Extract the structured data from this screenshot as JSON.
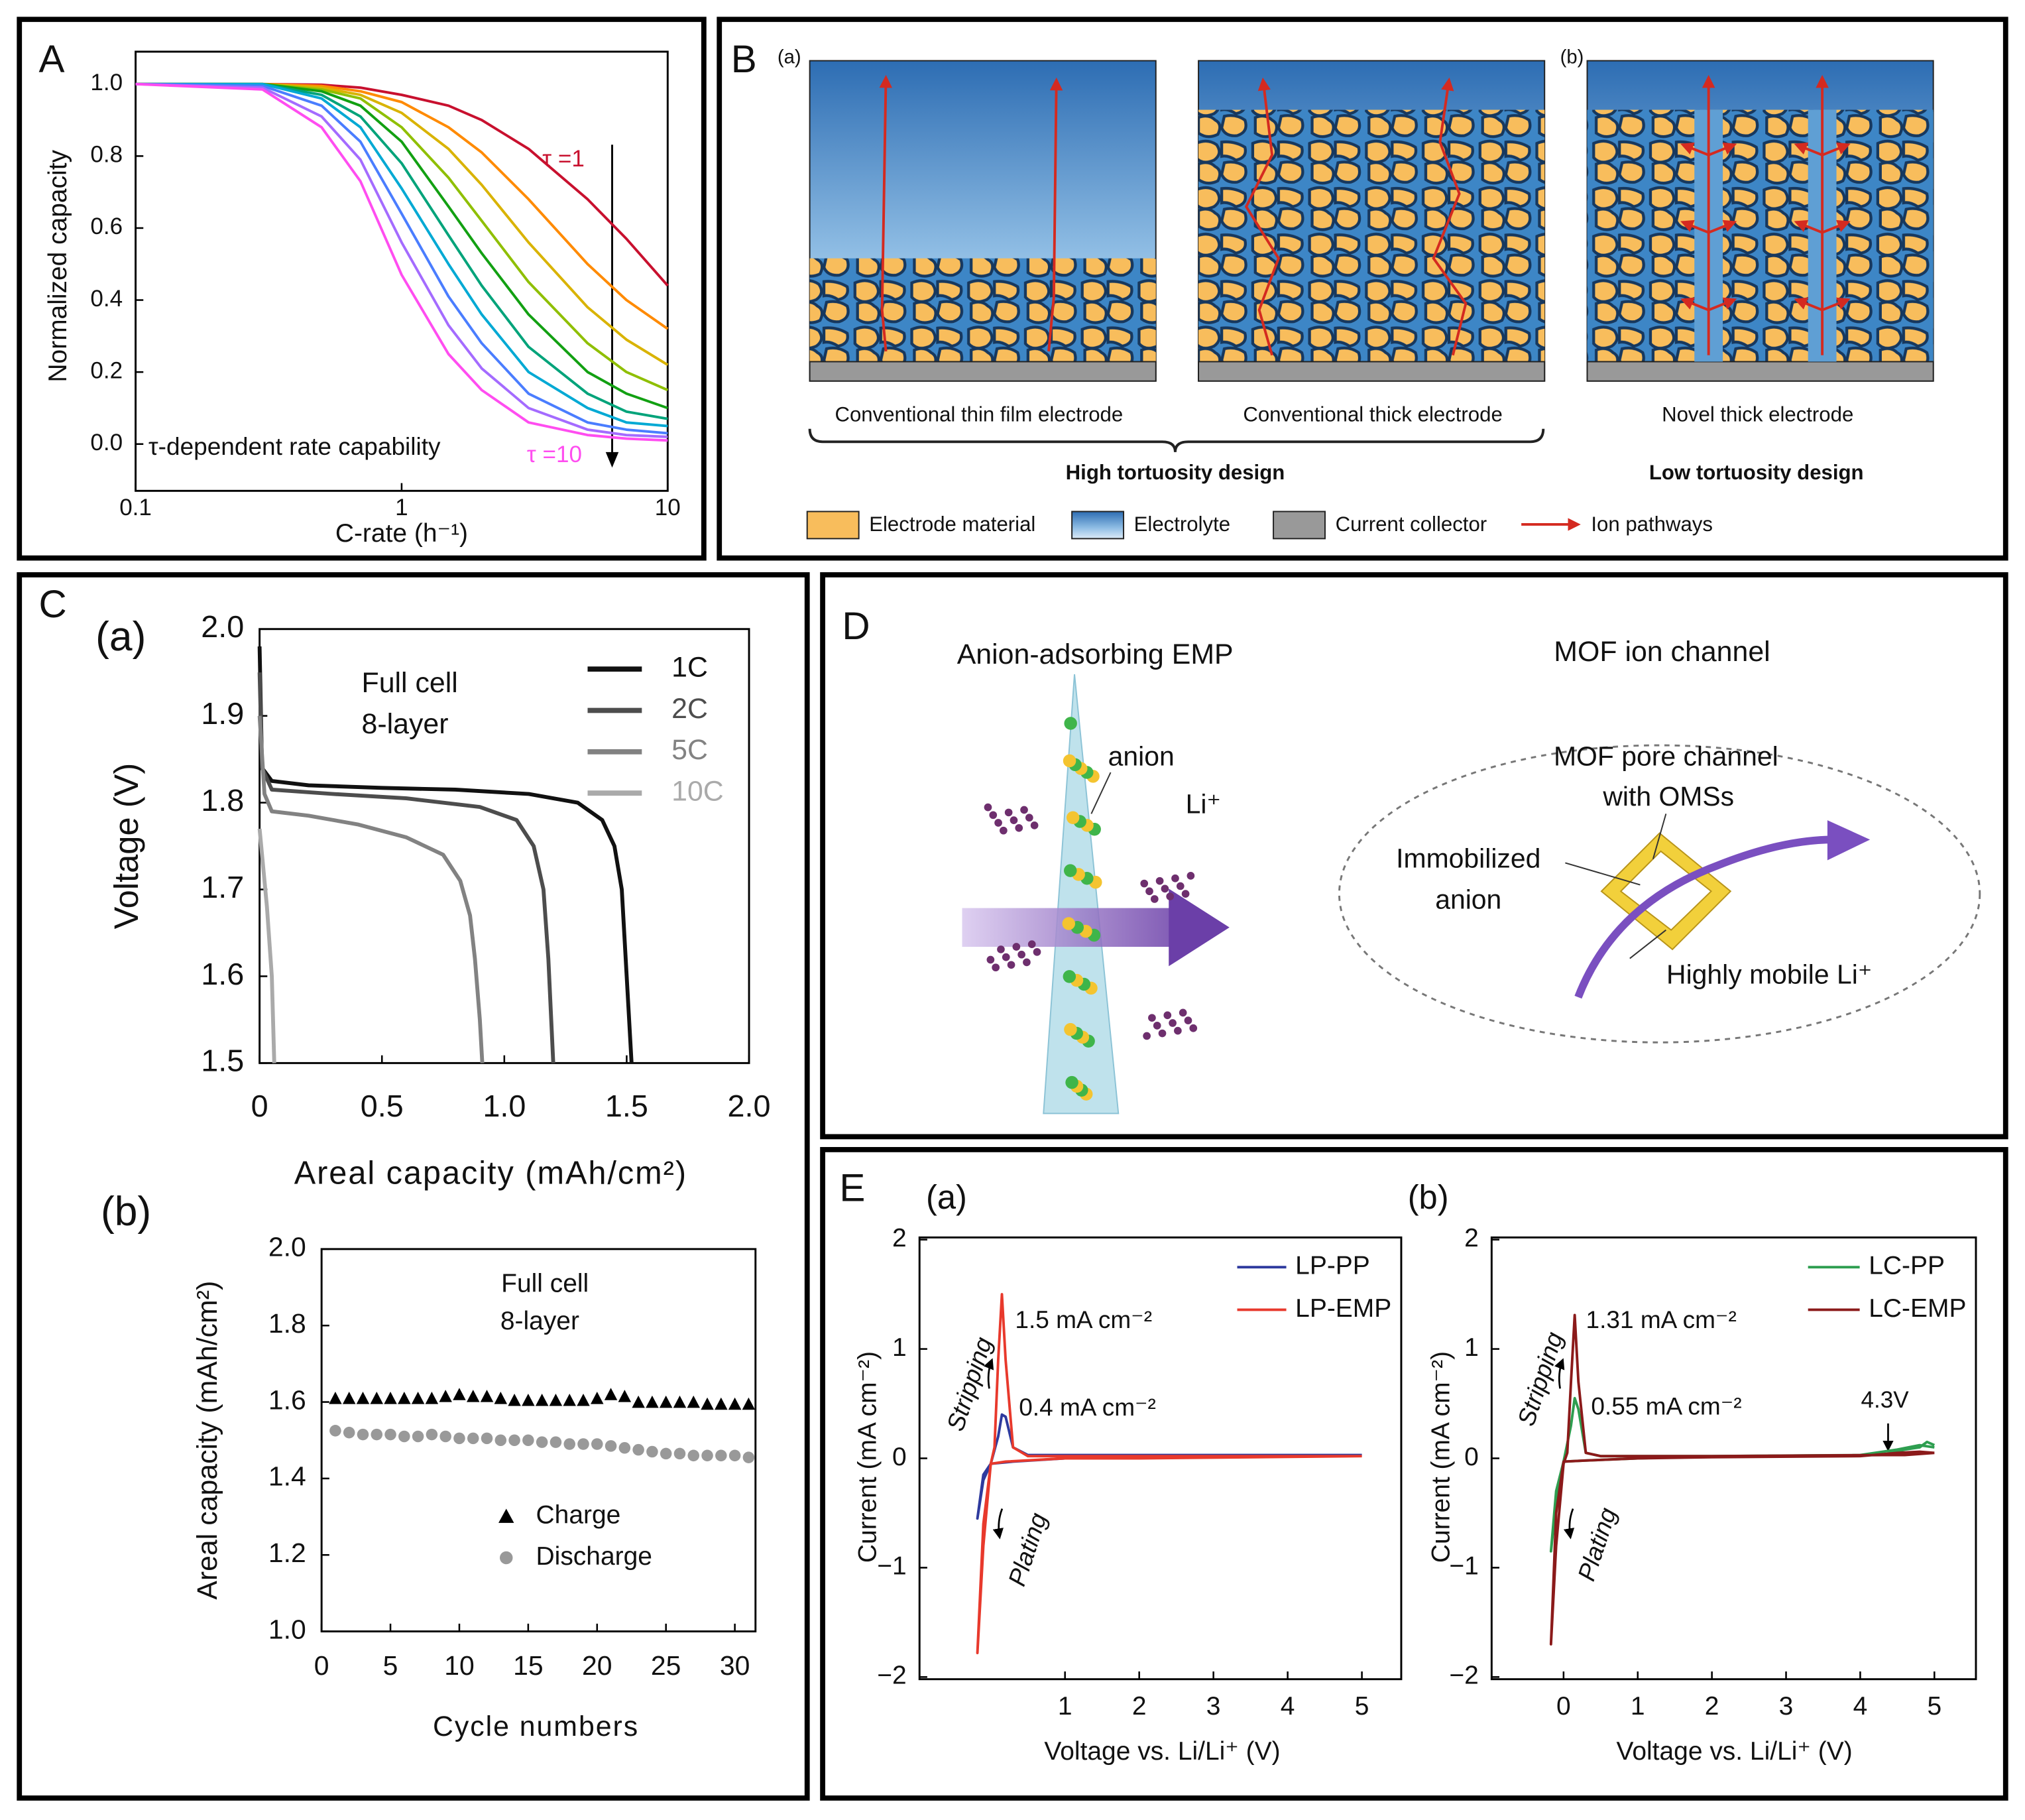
{
  "panels": [
    "A",
    "B",
    "C",
    "D",
    "E"
  ],
  "chart_data": [
    {
      "type": "line",
      "xlabel": "C-rate (h⁻¹)",
      "ylabel": "Normalized capacity",
      "log_x": true,
      "x": [
        0.1,
        0.3,
        0.5,
        0.7,
        1,
        1.5,
        2,
        3,
        5,
        7,
        10
      ],
      "xlim": [
        0.1,
        10
      ],
      "xticks": [
        0.1,
        1,
        10
      ],
      "ylim": [
        -0.13,
        1.09
      ],
      "yticks": [
        {
          "value": 0,
          "label": "0.0"
        },
        0.2,
        0.4,
        0.6,
        0.8,
        {
          "value": 1,
          "label": "1.0"
        }
      ],
      "annotations": [
        "τ =1",
        "τ =10",
        "τ-dependent rate capability"
      ],
      "series": [
        {
          "color": "#c8102e",
          "values": [
            1,
            1,
            0.998,
            0.99,
            0.97,
            0.94,
            0.9,
            0.82,
            0.68,
            0.57,
            0.44
          ]
        },
        {
          "color": "#ff8a00",
          "values": [
            1,
            1,
            0.995,
            0.98,
            0.95,
            0.88,
            0.81,
            0.68,
            0.5,
            0.4,
            0.32
          ]
        },
        {
          "color": "#d9b300",
          "values": [
            1,
            1,
            0.99,
            0.97,
            0.92,
            0.82,
            0.72,
            0.56,
            0.38,
            0.29,
            0.22
          ]
        },
        {
          "color": "#8fbf00",
          "values": [
            1,
            1,
            0.985,
            0.96,
            0.88,
            0.74,
            0.62,
            0.45,
            0.28,
            0.2,
            0.15
          ]
        },
        {
          "color": "#12a012",
          "values": [
            1,
            1,
            0.98,
            0.94,
            0.84,
            0.66,
            0.53,
            0.36,
            0.2,
            0.14,
            0.1
          ]
        },
        {
          "color": "#00a37a",
          "values": [
            1,
            1,
            0.97,
            0.91,
            0.78,
            0.58,
            0.44,
            0.27,
            0.14,
            0.09,
            0.07
          ]
        },
        {
          "color": "#00a9d4",
          "values": [
            1,
            1,
            0.96,
            0.88,
            0.71,
            0.5,
            0.36,
            0.2,
            0.1,
            0.06,
            0.05
          ]
        },
        {
          "color": "#4a7dff",
          "values": [
            1,
            0.995,
            0.94,
            0.84,
            0.64,
            0.41,
            0.28,
            0.14,
            0.06,
            0.04,
            0.03
          ]
        },
        {
          "color": "#a46bff",
          "values": [
            1,
            0.99,
            0.91,
            0.79,
            0.56,
            0.33,
            0.21,
            0.1,
            0.04,
            0.025,
            0.02
          ]
        },
        {
          "color": "#ff4df0",
          "values": [
            1,
            0.985,
            0.88,
            0.73,
            0.47,
            0.25,
            0.15,
            0.06,
            0.025,
            0.015,
            0.01
          ]
        }
      ]
    },
    {
      "type": "line",
      "label": "(a)",
      "annotations": [
        "Full cell",
        "8-layer"
      ],
      "xlabel": "Areal capacity (mAh/cm²)",
      "ylabel": "Voltage (V)",
      "xlim": [
        0,
        2
      ],
      "xticks": [
        0,
        0.5,
        {
          "value": 1,
          "label": "1.0"
        },
        1.5,
        {
          "value": 2,
          "label": "2.0"
        }
      ],
      "ylim": [
        1.5,
        2
      ],
      "yticks": [
        1.5,
        1.6,
        1.7,
        1.8,
        1.9,
        {
          "value": 2,
          "label": "2.0"
        }
      ],
      "series": [
        {
          "name": "1C",
          "color": "#111111",
          "x": [
            0,
            0.01,
            0.05,
            0.2,
            0.5,
            0.8,
            1.1,
            1.3,
            1.4,
            1.45,
            1.48,
            1.5,
            1.52
          ],
          "values": [
            1.98,
            1.84,
            1.825,
            1.82,
            1.817,
            1.815,
            1.81,
            1.8,
            1.78,
            1.75,
            1.7,
            1.6,
            1.5
          ]
        },
        {
          "name": "2C",
          "color": "#4d4d4d",
          "x": [
            0,
            0.01,
            0.05,
            0.3,
            0.6,
            0.9,
            1.05,
            1.12,
            1.16,
            1.18,
            1.19,
            1.2
          ],
          "values": [
            1.95,
            1.84,
            1.815,
            1.81,
            1.805,
            1.795,
            1.78,
            1.75,
            1.7,
            1.62,
            1.56,
            1.5
          ]
        },
        {
          "name": "5C",
          "color": "#828282",
          "x": [
            0,
            0.02,
            0.05,
            0.2,
            0.4,
            0.6,
            0.75,
            0.82,
            0.86,
            0.88,
            0.9,
            0.91
          ],
          "values": [
            1.9,
            1.81,
            1.79,
            1.785,
            1.775,
            1.76,
            1.74,
            1.71,
            1.67,
            1.62,
            1.55,
            1.5
          ]
        },
        {
          "name": "10C",
          "color": "#aaaaaa",
          "x": [
            0,
            0.01,
            0.03,
            0.05,
            0.06
          ],
          "values": [
            1.77,
            1.74,
            1.68,
            1.6,
            1.5
          ]
        }
      ]
    },
    {
      "type": "scatter",
      "label": "(b)",
      "annotations": [
        "Full cell",
        "8-layer"
      ],
      "xlabel": "Cycle numbers",
      "ylabel": "Areal capacity (mAh/cm²)",
      "x": [
        1,
        2,
        3,
        4,
        5,
        6,
        7,
        8,
        9,
        10,
        11,
        12,
        13,
        14,
        15,
        16,
        17,
        18,
        19,
        20,
        21,
        22,
        23,
        24,
        25,
        26,
        27,
        28,
        29,
        30,
        31
      ],
      "xlim": [
        0,
        31.5
      ],
      "xticks": [
        0,
        5,
        10,
        15,
        20,
        25,
        30
      ],
      "ylim": [
        1,
        2
      ],
      "yticks": [
        {
          "value": 1,
          "label": "1.0"
        },
        1.2,
        1.4,
        1.6,
        1.8,
        {
          "value": 2,
          "label": "2.0"
        }
      ],
      "series": [
        {
          "name": "Charge",
          "color": "#000000",
          "marker": "triangle",
          "values": [
            1.61,
            1.61,
            1.61,
            1.61,
            1.61,
            1.61,
            1.61,
            1.61,
            1.615,
            1.62,
            1.615,
            1.615,
            1.61,
            1.605,
            1.605,
            1.605,
            1.605,
            1.605,
            1.605,
            1.61,
            1.62,
            1.615,
            1.6,
            1.6,
            1.6,
            1.6,
            1.6,
            1.595,
            1.595,
            1.595,
            1.595
          ]
        },
        {
          "name": "Discharge",
          "color": "#999999",
          "marker": "circle",
          "values": [
            1.525,
            1.52,
            1.515,
            1.515,
            1.515,
            1.51,
            1.51,
            1.515,
            1.51,
            1.505,
            1.505,
            1.505,
            1.5,
            1.5,
            1.5,
            1.495,
            1.495,
            1.49,
            1.49,
            1.49,
            1.485,
            1.48,
            1.475,
            1.47,
            1.465,
            1.465,
            1.46,
            1.46,
            1.46,
            1.46,
            1.455
          ]
        }
      ]
    },
    {
      "type": "line",
      "label": "(a)",
      "annotations": [
        "1.5 mA cm⁻²",
        "0.4 mA cm⁻²",
        "Stripping",
        "Plating"
      ],
      "xlabel": "Voltage vs. Li/Li⁺ (V)",
      "ylabel": "Current (mA cm⁻²)",
      "xlim": [
        -0.96,
        5.53
      ],
      "xticks": [
        1,
        2,
        3,
        4,
        5
      ],
      "ylim": [
        -2.02,
        2.02
      ],
      "yticks": [
        {
          "value": -2,
          "label": "−2"
        },
        {
          "value": -1,
          "label": "−1"
        },
        0,
        1,
        2
      ],
      "series": [
        {
          "name": "LP-PP",
          "color": "#2e3a9e",
          "x": [
            5,
            2,
            0.5,
            0.3,
            0.2,
            0.15,
            0.1,
            0,
            -0.1,
            -0.18,
            -0.1,
            0,
            0.3,
            1,
            2,
            5
          ],
          "values": [
            0.03,
            0.03,
            0.03,
            0.1,
            0.38,
            0.4,
            0.2,
            -0.05,
            -0.2,
            -0.55,
            -0.15,
            -0.05,
            -0.03,
            0,
            0.02,
            0.03
          ]
        },
        {
          "name": "LP-EMP",
          "color": "#e8392c",
          "x": [
            5,
            2,
            0.5,
            0.3,
            0.2,
            0.15,
            0.1,
            0.05,
            0,
            -0.1,
            -0.18,
            -0.1,
            0,
            0.2,
            1,
            2,
            5
          ],
          "values": [
            0.02,
            0.02,
            0.02,
            0.1,
            0.9,
            1.5,
            0.9,
            0.1,
            -0.05,
            -0.8,
            -1.78,
            -0.6,
            -0.05,
            -0.03,
            0,
            0,
            0.02
          ]
        }
      ]
    },
    {
      "type": "line",
      "label": "(b)",
      "annotations": [
        "1.31 mA cm⁻²",
        "0.55 mA cm⁻²",
        "4.3V",
        "Stripping",
        "Plating"
      ],
      "xlabel": "Voltage vs. Li/Li⁺ (V)",
      "ylabel": "Current (mA cm⁻²)",
      "xlim": [
        -0.97,
        5.56
      ],
      "xticks": [
        0,
        1,
        2,
        3,
        4,
        5
      ],
      "ylim": [
        -2.02,
        2.02
      ],
      "yticks": [
        {
          "value": -2,
          "label": "−2"
        },
        {
          "value": -1,
          "label": "−1"
        },
        0,
        1,
        2
      ],
      "series": [
        {
          "name": "LC-PP",
          "color": "#2e9e50",
          "x": [
            5,
            4.9,
            4.8,
            4.6,
            4.3,
            2,
            0.5,
            0.3,
            0.2,
            0.15,
            0.1,
            0,
            -0.1,
            -0.17,
            -0.1,
            0,
            0.3,
            1,
            2,
            4,
            4.5,
            4.8,
            5
          ],
          "values": [
            0.12,
            0.15,
            0.1,
            0.08,
            0.03,
            0.02,
            0.02,
            0.05,
            0.45,
            0.55,
            0.3,
            -0.03,
            -0.4,
            -0.85,
            -0.3,
            -0.03,
            -0.02,
            0,
            0.02,
            0.03,
            0.08,
            0.12,
            0.1
          ]
        },
        {
          "name": "LC-EMP",
          "color": "#8b1a1a",
          "x": [
            5,
            4.6,
            4.3,
            2,
            0.5,
            0.3,
            0.2,
            0.15,
            0.1,
            0.05,
            0,
            -0.1,
            -0.17,
            -0.1,
            0,
            0.3,
            1,
            2,
            4,
            4.5,
            4.8,
            5
          ],
          "values": [
            0.05,
            0.03,
            0.03,
            0.02,
            0.02,
            0.05,
            0.7,
            1.31,
            0.7,
            0.05,
            -0.05,
            -0.8,
            -1.7,
            -0.5,
            -0.03,
            -0.02,
            0,
            0.01,
            0.02,
            0.05,
            0.06,
            0.05
          ]
        }
      ]
    }
  ],
  "diagram_b": {
    "sub_labels": [
      "(a)",
      "(b)"
    ],
    "captions": [
      "Conventional thin film electrode",
      "Conventional thick electrode",
      "Novel thick electrode"
    ],
    "designs": [
      "High tortuosity design",
      "Low tortuosity design"
    ],
    "legend": [
      "Electrode material",
      "Electrolyte",
      "Current collector",
      "Ion pathways"
    ]
  },
  "diagram_d": {
    "titles": [
      "Anion-adsorbing EMP",
      "MOF ion channel"
    ],
    "labels": [
      "anion",
      "Li⁺",
      "MOF pore channel",
      "with OMSs",
      "Immobilized",
      "anion",
      "Highly mobile Li⁺"
    ]
  }
}
